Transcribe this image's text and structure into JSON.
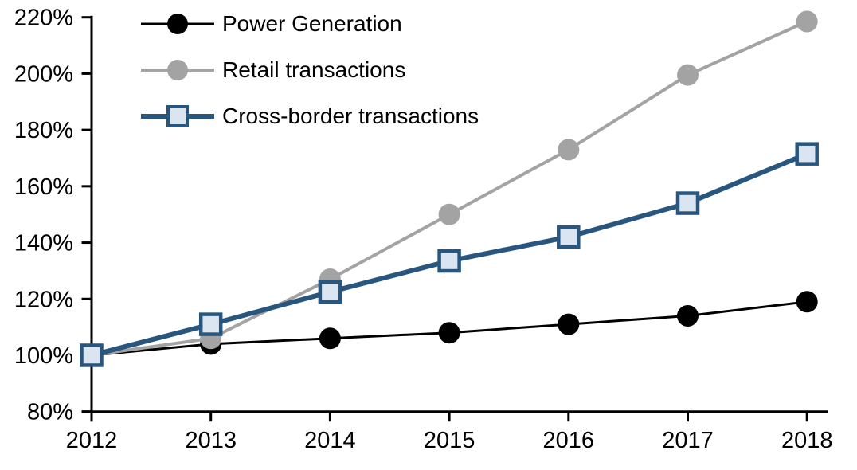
{
  "chart_data": {
    "type": "line",
    "title": "",
    "categories": [
      "2012",
      "2013",
      "2014",
      "2015",
      "2016",
      "2017",
      "2018"
    ],
    "y_axis": {
      "min": 80,
      "max": 220,
      "step": 20,
      "tick_suffix": "%",
      "tick_labels": [
        "80%",
        "100%",
        "120%",
        "140%",
        "160%",
        "180%",
        "200%",
        "220%"
      ]
    },
    "grid": false,
    "legend_position": "top-left-inside",
    "axis_color": "#000000",
    "series": [
      {
        "name": "Power Generation",
        "marker": "circle",
        "line_color": "#000000",
        "marker_fill": "#000000",
        "marker_stroke": "#000000",
        "line_width": 3,
        "values": [
          100,
          104,
          106,
          108,
          111,
          114,
          119
        ]
      },
      {
        "name": "Retail transactions",
        "marker": "circle",
        "line_color": "#a3a3a3",
        "marker_fill": "#a3a3a3",
        "marker_stroke": "#a3a3a3",
        "line_width": 4,
        "values": [
          100,
          106,
          127,
          150,
          173,
          199.5,
          218.5
        ]
      },
      {
        "name": "Cross-border transactions",
        "marker": "square",
        "line_color": "#29567e",
        "marker_fill": "#dbe5f1",
        "marker_stroke": "#29567e",
        "line_width": 6,
        "values": [
          100,
          111,
          122.5,
          133.5,
          142,
          154,
          171.5
        ]
      }
    ]
  }
}
